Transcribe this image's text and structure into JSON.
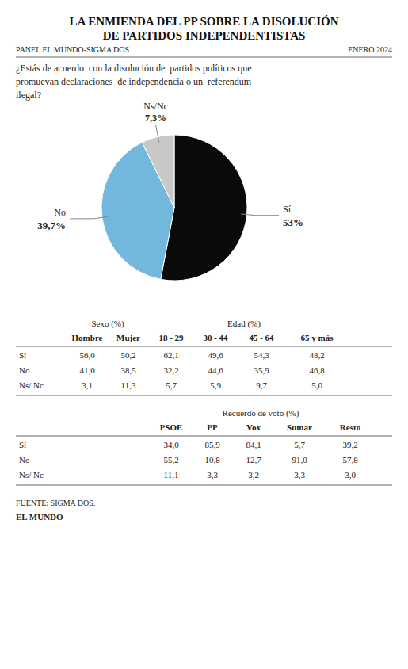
{
  "chart_data": [
    {
      "type": "pie",
      "title": "LA ENMIENDA DEL PP SOBRE LA DISOLUCIÓN\nDE PARTIDOS INDEPENDENTISTAS",
      "subtitle": "¿Estás de acuerdo  con la disolución de  partidos políticos que\npromuevan declaraciones  de independencia o un  referendum\nilegal?",
      "annotations": [
        "PANEL EL MUNDO-SIGMA DOS",
        "ENERO 2024",
        "FUENTE: SIGMA DOS.",
        "EL MUNDO"
      ],
      "categories": [
        "Sí",
        "No",
        "Ns/Nc"
      ],
      "values": [
        53.0,
        39.7,
        7.3
      ],
      "value_labels": [
        "53%",
        "39,7%",
        "7,3%"
      ],
      "colors": [
        "#0a0a0a",
        "#72b8dc",
        "#c8c8c8"
      ],
      "data_labels": true
    },
    {
      "type": "table",
      "column_groups": [
        {
          "title": "Sexo (%)",
          "categories": [
            "Hombre",
            "Mujer"
          ]
        },
        {
          "title": "Edad (%)",
          "categories": [
            "18 - 29",
            "30 - 44",
            "45 - 64",
            "65 y más"
          ]
        }
      ],
      "series": [
        {
          "name": "Sí",
          "values": [
            56.0,
            50.2,
            62.1,
            49.6,
            54.3,
            48.2
          ],
          "value_labels": [
            "56,0",
            "50,2",
            "62,1",
            "49,6",
            "54,3",
            "48,2"
          ]
        },
        {
          "name": "No",
          "values": [
            41.0,
            38.5,
            32.2,
            44.6,
            35.9,
            46.8
          ],
          "value_labels": [
            "41,0",
            "38,5",
            "32,2",
            "44,6",
            "35,9",
            "46,8"
          ]
        },
        {
          "name": "Ns/ Nc",
          "values": [
            3.1,
            11.3,
            5.7,
            5.9,
            9.7,
            5.0
          ],
          "value_labels": [
            "3,1",
            "11,3",
            "5,7",
            "5,9",
            "9,7",
            "5,0"
          ]
        }
      ]
    },
    {
      "type": "table",
      "title": "Recuerdo de voto (%)",
      "categories": [
        "PSOE",
        "PP",
        "Vox",
        "Sumar",
        "Resto"
      ],
      "series": [
        {
          "name": "Sí",
          "values": [
            34.0,
            85.9,
            84.1,
            5.7,
            39.2
          ],
          "value_labels": [
            "34,0",
            "85,9",
            "84,1",
            "5,7",
            "39,2"
          ]
        },
        {
          "name": "No",
          "values": [
            55.2,
            10.8,
            12.7,
            91.0,
            57.8
          ],
          "value_labels": [
            "55,2",
            "10,8",
            "12,7",
            "91,0",
            "57,8"
          ]
        },
        {
          "name": "Ns/ Nc",
          "values": [
            11.1,
            3.3,
            3.2,
            3.3,
            3.0
          ],
          "value_labels": [
            "11,1",
            "3,3",
            "3,2",
            "3,3",
            "3,0"
          ]
        }
      ]
    }
  ]
}
